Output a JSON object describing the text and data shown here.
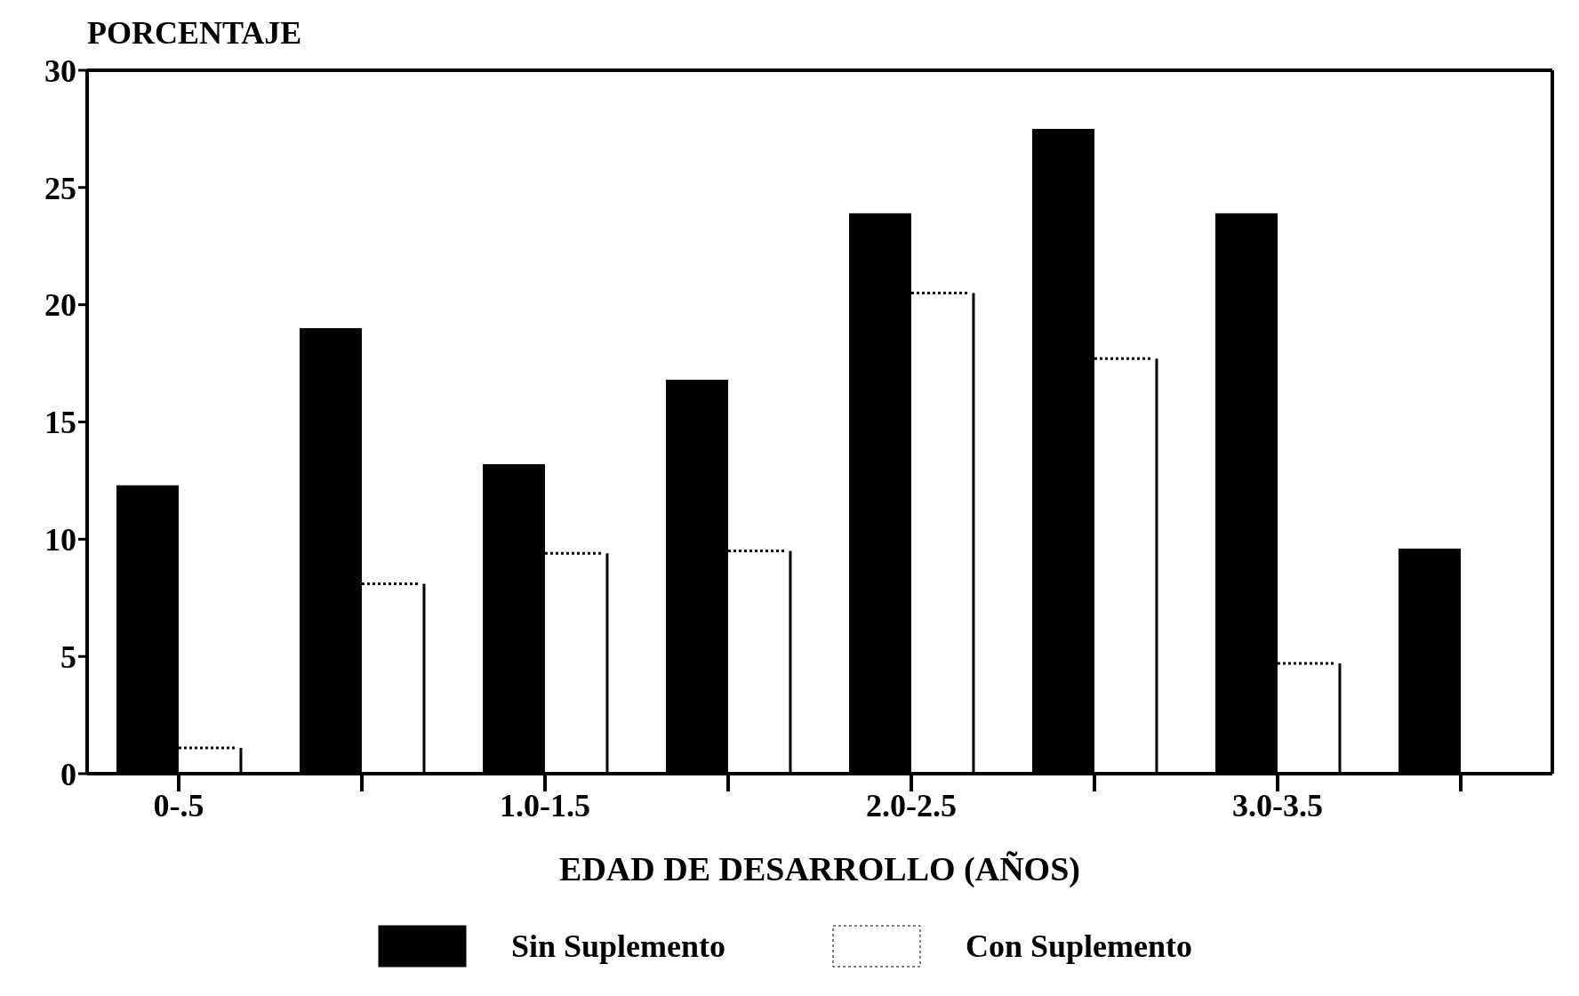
{
  "chart_data": {
    "type": "bar",
    "xlabel": "EDAD DE DESARROLLO (AÑOS)",
    "ylabel": "PORCENTAJE",
    "categories": [
      "0-.5",
      null,
      "1.0-1.5",
      null,
      "2.0-2.5",
      null,
      "3.0-3.5",
      null
    ],
    "series": [
      {
        "name": "Sin Suplemento",
        "color": "#000000",
        "values": [
          12.3,
          19.0,
          13.2,
          16.8,
          23.9,
          27.5,
          23.9,
          9.6
        ]
      },
      {
        "name": "Con Suplemento",
        "color": "#ffffff",
        "values": [
          1.1,
          8.1,
          9.4,
          9.5,
          20.5,
          17.7,
          4.7,
          null
        ]
      }
    ],
    "ylim": [
      0,
      30
    ],
    "yticks": [
      0,
      5,
      10,
      15,
      20,
      25,
      30
    ],
    "legend": "bottom"
  }
}
